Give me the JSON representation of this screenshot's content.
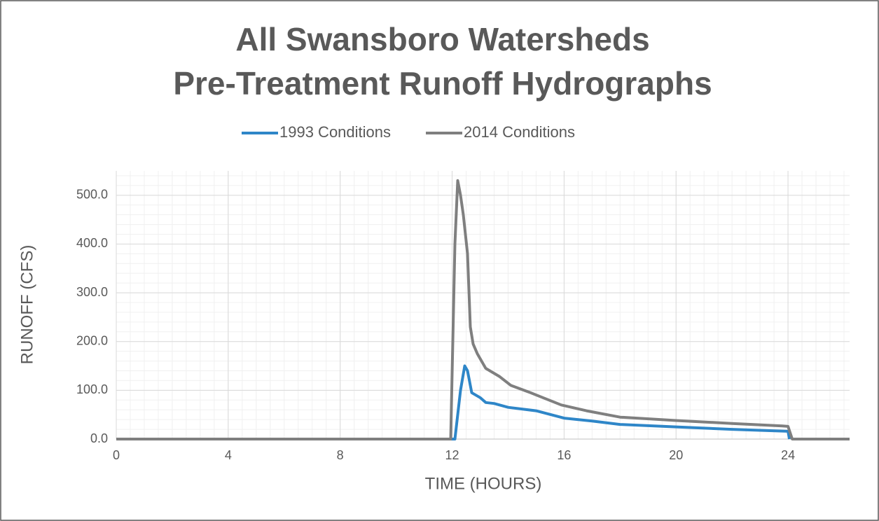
{
  "chart_data": {
    "type": "line",
    "title": [
      "All Swansboro Watersheds",
      "Pre-Treatment Runoff Hydrographs"
    ],
    "x_label": "TIME (HOURS)",
    "y_label": "RUNOFF (CFS)",
    "xlim": [
      0,
      26.2
    ],
    "xticks": [
      0,
      4,
      8,
      12,
      16,
      20,
      24
    ],
    "ylim": [
      0,
      550
    ],
    "yticks": [
      {
        "value": 0,
        "label": "0.0"
      },
      {
        "value": 100,
        "label": "100.0"
      },
      {
        "value": 200,
        "label": "200.0"
      },
      {
        "value": 300,
        "label": "300.0"
      },
      {
        "value": 400,
        "label": "400.0"
      },
      {
        "value": 500,
        "label": "500.0"
      }
    ],
    "grid": true,
    "minor_grid": true,
    "legend": "top",
    "series": [
      {
        "name": "1993 Conditions",
        "color": "#2e86c8",
        "x": [
          0,
          12.1,
          12.3,
          12.45,
          12.55,
          12.7,
          13.0,
          13.2,
          13.5,
          14.0,
          15.0,
          16.0,
          17.0,
          18.0,
          20.0,
          22.0,
          24.0,
          24.05
        ],
        "values": [
          0,
          0,
          100,
          150,
          140,
          95,
          85,
          75,
          73,
          65,
          58,
          43,
          37,
          30,
          25,
          20,
          16,
          0
        ]
      },
      {
        "name": "2014 Conditions",
        "color": "#7f7f7f",
        "x": [
          0,
          11.95,
          12.1,
          12.2,
          12.3,
          12.4,
          12.55,
          12.65,
          12.75,
          12.9,
          13.2,
          13.7,
          14.1,
          14.8,
          15.9,
          16.8,
          18.0,
          20.0,
          22.0,
          23.8,
          24.0,
          24.15,
          26.2
        ],
        "values": [
          0,
          0,
          400,
          530,
          500,
          460,
          380,
          230,
          195,
          175,
          145,
          128,
          110,
          95,
          70,
          58,
          45,
          38,
          32,
          27,
          26,
          0,
          0
        ]
      }
    ]
  }
}
